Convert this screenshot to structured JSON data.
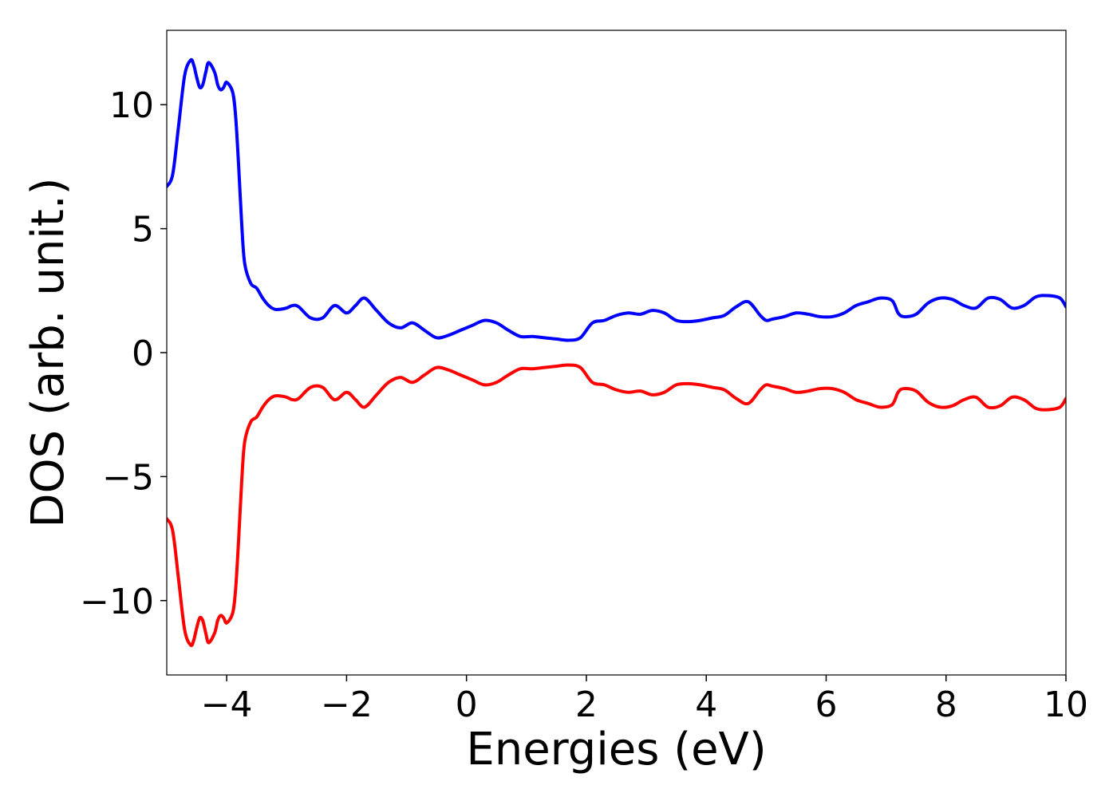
{
  "chart_data": {
    "type": "line",
    "title": "",
    "xlabel": "Energies (eV)",
    "ylabel": "DOS (arb. unit.)",
    "xlim": [
      -5,
      10
    ],
    "ylim": [
      -13,
      13
    ],
    "xticks": [
      -4,
      -2,
      0,
      2,
      4,
      6,
      8,
      10
    ],
    "yticks": [
      -10,
      -5,
      0,
      5,
      10
    ],
    "xtick_labels": [
      "−4",
      "−2",
      "0",
      "2",
      "4",
      "6",
      "8",
      "10"
    ],
    "ytick_labels": [
      "−10",
      "−5",
      "0",
      "5",
      "10"
    ],
    "grid": false,
    "legend": "none",
    "series": [
      {
        "color": "#0000ff",
        "x": [
          -5.0,
          -4.9,
          -4.8,
          -4.7,
          -4.6,
          -4.55,
          -4.5,
          -4.45,
          -4.4,
          -4.35,
          -4.3,
          -4.2,
          -4.15,
          -4.1,
          -4.05,
          -4.0,
          -3.9,
          -3.85,
          -3.8,
          -3.75,
          -3.7,
          -3.6,
          -3.5,
          -3.4,
          -3.3,
          -3.2,
          -3.1,
          -3.0,
          -2.9,
          -2.8,
          -2.6,
          -2.4,
          -2.2,
          -2.0,
          -1.85,
          -1.7,
          -1.5,
          -1.3,
          -1.1,
          -0.9,
          -0.7,
          -0.5,
          -0.3,
          -0.1,
          0.1,
          0.3,
          0.5,
          0.7,
          0.9,
          1.1,
          1.3,
          1.5,
          1.7,
          1.9,
          2.1,
          2.3,
          2.5,
          2.7,
          2.9,
          3.1,
          3.3,
          3.5,
          3.7,
          3.9,
          4.1,
          4.3,
          4.5,
          4.7,
          4.9,
          5.0,
          5.1,
          5.3,
          5.5,
          5.7,
          5.9,
          6.1,
          6.3,
          6.5,
          6.7,
          6.9,
          7.1,
          7.2,
          7.3,
          7.5,
          7.7,
          7.9,
          8.1,
          8.3,
          8.5,
          8.7,
          8.9,
          9.1,
          9.3,
          9.5,
          9.7,
          9.9,
          10.0
        ],
        "values": [
          6.7,
          7.2,
          9.2,
          11.2,
          11.8,
          11.6,
          11.1,
          10.7,
          10.8,
          11.3,
          11.7,
          11.3,
          10.8,
          10.6,
          10.7,
          10.9,
          10.5,
          9.5,
          7.5,
          5.2,
          3.6,
          2.8,
          2.6,
          2.2,
          1.9,
          1.75,
          1.75,
          1.8,
          1.9,
          1.85,
          1.4,
          1.4,
          1.9,
          1.6,
          1.9,
          2.2,
          1.7,
          1.2,
          1.0,
          1.2,
          0.9,
          0.6,
          0.7,
          0.9,
          1.1,
          1.3,
          1.2,
          0.9,
          0.65,
          0.65,
          0.6,
          0.55,
          0.5,
          0.6,
          1.2,
          1.3,
          1.5,
          1.6,
          1.55,
          1.7,
          1.6,
          1.3,
          1.25,
          1.3,
          1.4,
          1.5,
          1.85,
          2.05,
          1.5,
          1.3,
          1.35,
          1.45,
          1.6,
          1.55,
          1.45,
          1.45,
          1.6,
          1.9,
          2.05,
          2.2,
          2.1,
          1.6,
          1.45,
          1.55,
          2.0,
          2.2,
          2.15,
          1.9,
          1.8,
          2.2,
          2.15,
          1.8,
          1.9,
          2.25,
          2.3,
          2.2,
          1.85
        ]
      },
      {
        "color": "#ff0000",
        "x": [
          -5.0,
          -4.9,
          -4.8,
          -4.7,
          -4.6,
          -4.55,
          -4.5,
          -4.45,
          -4.4,
          -4.35,
          -4.3,
          -4.2,
          -4.15,
          -4.1,
          -4.05,
          -4.0,
          -3.9,
          -3.85,
          -3.8,
          -3.75,
          -3.7,
          -3.6,
          -3.5,
          -3.4,
          -3.3,
          -3.2,
          -3.1,
          -3.0,
          -2.9,
          -2.8,
          -2.6,
          -2.4,
          -2.2,
          -2.0,
          -1.85,
          -1.7,
          -1.5,
          -1.3,
          -1.1,
          -0.9,
          -0.7,
          -0.5,
          -0.3,
          -0.1,
          0.1,
          0.3,
          0.5,
          0.7,
          0.9,
          1.1,
          1.3,
          1.5,
          1.7,
          1.9,
          2.1,
          2.3,
          2.5,
          2.7,
          2.9,
          3.1,
          3.3,
          3.5,
          3.7,
          3.9,
          4.1,
          4.3,
          4.5,
          4.7,
          4.9,
          5.0,
          5.1,
          5.3,
          5.5,
          5.7,
          5.9,
          6.1,
          6.3,
          6.5,
          6.7,
          6.9,
          7.1,
          7.2,
          7.3,
          7.5,
          7.7,
          7.9,
          8.1,
          8.3,
          8.5,
          8.7,
          8.9,
          9.1,
          9.3,
          9.5,
          9.7,
          9.9,
          10.0
        ],
        "values": [
          -6.7,
          -7.2,
          -9.2,
          -11.2,
          -11.8,
          -11.6,
          -11.1,
          -10.7,
          -10.8,
          -11.3,
          -11.7,
          -11.3,
          -10.8,
          -10.6,
          -10.7,
          -10.9,
          -10.5,
          -9.5,
          -7.5,
          -5.2,
          -3.6,
          -2.8,
          -2.6,
          -2.2,
          -1.9,
          -1.75,
          -1.75,
          -1.8,
          -1.9,
          -1.85,
          -1.4,
          -1.4,
          -1.9,
          -1.6,
          -1.9,
          -2.2,
          -1.7,
          -1.2,
          -1.0,
          -1.2,
          -0.9,
          -0.6,
          -0.7,
          -0.9,
          -1.1,
          -1.3,
          -1.2,
          -0.9,
          -0.65,
          -0.65,
          -0.6,
          -0.55,
          -0.5,
          -0.6,
          -1.2,
          -1.3,
          -1.5,
          -1.6,
          -1.55,
          -1.7,
          -1.6,
          -1.3,
          -1.25,
          -1.3,
          -1.4,
          -1.5,
          -1.85,
          -2.05,
          -1.5,
          -1.3,
          -1.35,
          -1.45,
          -1.6,
          -1.55,
          -1.45,
          -1.45,
          -1.6,
          -1.9,
          -2.05,
          -2.2,
          -2.1,
          -1.6,
          -1.45,
          -1.55,
          -2.0,
          -2.2,
          -2.15,
          -1.9,
          -1.8,
          -2.2,
          -2.15,
          -1.8,
          -1.9,
          -2.25,
          -2.3,
          -2.2,
          -1.85
        ]
      }
    ]
  }
}
